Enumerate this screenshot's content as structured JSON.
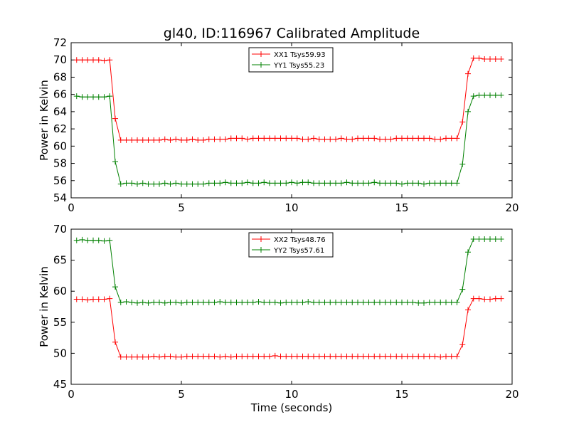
{
  "figure": {
    "title": "gl40, ID:116967 Calibrated Amplitude",
    "xlabel": "Time (seconds)"
  },
  "chart_data": [
    {
      "type": "line",
      "title": "gl40, ID:116967 Calibrated Amplitude",
      "xlabel": "",
      "ylabel": "Power in Kelvin",
      "xlim": [
        0,
        20
      ],
      "ylim": [
        54,
        72
      ],
      "xticks": [
        0,
        5,
        10,
        15,
        20
      ],
      "yticks": [
        54,
        56,
        58,
        60,
        62,
        64,
        66,
        68,
        70,
        72
      ],
      "grid": false,
      "legend": "top-center",
      "series": [
        {
          "name": "XX1 Tsys59.93",
          "color": "#ff0000",
          "x": [
            0.25,
            0.5,
            0.75,
            1.0,
            1.25,
            1.5,
            1.75,
            2.0,
            2.25,
            2.5,
            2.75,
            3.0,
            3.25,
            3.5,
            3.75,
            4.0,
            4.25,
            4.5,
            4.75,
            5.0,
            5.25,
            5.5,
            5.75,
            6.0,
            6.25,
            6.5,
            6.75,
            7.0,
            7.25,
            7.5,
            7.75,
            8.0,
            8.25,
            8.5,
            8.75,
            9.0,
            9.25,
            9.5,
            9.75,
            10.0,
            10.25,
            10.5,
            10.75,
            11.0,
            11.25,
            11.5,
            11.75,
            12.0,
            12.25,
            12.5,
            12.75,
            13.0,
            13.25,
            13.5,
            13.75,
            14.0,
            14.25,
            14.5,
            14.75,
            15.0,
            15.25,
            15.5,
            15.75,
            16.0,
            16.25,
            16.5,
            16.75,
            17.0,
            17.25,
            17.5,
            17.75,
            18.0,
            18.25,
            18.5,
            18.75,
            19.0,
            19.25,
            19.5
          ],
          "y": [
            70.0,
            70.0,
            70.0,
            70.0,
            70.0,
            69.9,
            70.0,
            63.2,
            60.7,
            60.7,
            60.7,
            60.7,
            60.7,
            60.7,
            60.7,
            60.7,
            60.8,
            60.7,
            60.8,
            60.7,
            60.7,
            60.8,
            60.7,
            60.7,
            60.8,
            60.8,
            60.8,
            60.8,
            60.9,
            60.9,
            60.9,
            60.8,
            60.9,
            60.9,
            60.9,
            60.9,
            60.9,
            60.9,
            60.9,
            60.9,
            60.9,
            60.8,
            60.8,
            60.9,
            60.8,
            60.8,
            60.8,
            60.8,
            60.9,
            60.8,
            60.8,
            60.9,
            60.9,
            60.9,
            60.9,
            60.8,
            60.8,
            60.8,
            60.9,
            60.9,
            60.9,
            60.9,
            60.9,
            60.9,
            60.9,
            60.8,
            60.8,
            60.9,
            60.9,
            60.9,
            62.8,
            68.4,
            70.2,
            70.2,
            70.1,
            70.1,
            70.1,
            70.1
          ]
        },
        {
          "name": "YY1 Tsys55.23",
          "color": "#008000",
          "x": [
            0.25,
            0.5,
            0.75,
            1.0,
            1.25,
            1.5,
            1.75,
            2.0,
            2.25,
            2.5,
            2.75,
            3.0,
            3.25,
            3.5,
            3.75,
            4.0,
            4.25,
            4.5,
            4.75,
            5.0,
            5.25,
            5.5,
            5.75,
            6.0,
            6.25,
            6.5,
            6.75,
            7.0,
            7.25,
            7.5,
            7.75,
            8.0,
            8.25,
            8.5,
            8.75,
            9.0,
            9.25,
            9.5,
            9.75,
            10.0,
            10.25,
            10.5,
            10.75,
            11.0,
            11.25,
            11.5,
            11.75,
            12.0,
            12.25,
            12.5,
            12.75,
            13.0,
            13.25,
            13.5,
            13.75,
            14.0,
            14.25,
            14.5,
            14.75,
            15.0,
            15.25,
            15.5,
            15.75,
            16.0,
            16.25,
            16.5,
            16.75,
            17.0,
            17.25,
            17.5,
            17.75,
            18.0,
            18.25,
            18.5,
            18.75,
            19.0,
            19.25,
            19.5
          ],
          "y": [
            65.8,
            65.7,
            65.7,
            65.7,
            65.7,
            65.7,
            65.8,
            58.2,
            55.6,
            55.7,
            55.7,
            55.6,
            55.7,
            55.6,
            55.6,
            55.6,
            55.7,
            55.6,
            55.7,
            55.6,
            55.6,
            55.6,
            55.6,
            55.6,
            55.7,
            55.7,
            55.7,
            55.8,
            55.7,
            55.7,
            55.7,
            55.8,
            55.7,
            55.7,
            55.8,
            55.7,
            55.7,
            55.7,
            55.7,
            55.8,
            55.7,
            55.8,
            55.8,
            55.7,
            55.7,
            55.7,
            55.7,
            55.7,
            55.7,
            55.8,
            55.7,
            55.7,
            55.7,
            55.7,
            55.8,
            55.7,
            55.7,
            55.7,
            55.7,
            55.6,
            55.7,
            55.7,
            55.7,
            55.6,
            55.7,
            55.7,
            55.7,
            55.7,
            55.7,
            55.7,
            57.9,
            64.0,
            65.8,
            65.9,
            65.9,
            65.9,
            65.9,
            65.9
          ]
        }
      ]
    },
    {
      "type": "line",
      "title": "",
      "xlabel": "Time (seconds)",
      "ylabel": "Power in Kelvin",
      "xlim": [
        0,
        20
      ],
      "ylim": [
        45,
        70
      ],
      "xticks": [
        0,
        5,
        10,
        15,
        20
      ],
      "yticks": [
        45,
        50,
        55,
        60,
        65,
        70
      ],
      "grid": false,
      "legend": "top-center",
      "series": [
        {
          "name": "XX2 Tsys48.76",
          "color": "#ff0000",
          "x": [
            0.25,
            0.5,
            0.75,
            1.0,
            1.25,
            1.5,
            1.75,
            2.0,
            2.25,
            2.5,
            2.75,
            3.0,
            3.25,
            3.5,
            3.75,
            4.0,
            4.25,
            4.5,
            4.75,
            5.0,
            5.25,
            5.5,
            5.75,
            6.0,
            6.25,
            6.5,
            6.75,
            7.0,
            7.25,
            7.5,
            7.75,
            8.0,
            8.25,
            8.5,
            8.75,
            9.0,
            9.25,
            9.5,
            9.75,
            10.0,
            10.25,
            10.5,
            10.75,
            11.0,
            11.25,
            11.5,
            11.75,
            12.0,
            12.25,
            12.5,
            12.75,
            13.0,
            13.25,
            13.5,
            13.75,
            14.0,
            14.25,
            14.5,
            14.75,
            15.0,
            15.25,
            15.5,
            15.75,
            16.0,
            16.25,
            16.5,
            16.75,
            17.0,
            17.25,
            17.5,
            17.75,
            18.0,
            18.25,
            18.5,
            18.75,
            19.0,
            19.25,
            19.5
          ],
          "y": [
            58.7,
            58.7,
            58.6,
            58.7,
            58.7,
            58.7,
            58.8,
            51.8,
            49.4,
            49.4,
            49.4,
            49.4,
            49.4,
            49.4,
            49.5,
            49.4,
            49.5,
            49.5,
            49.4,
            49.4,
            49.5,
            49.5,
            49.5,
            49.5,
            49.5,
            49.5,
            49.4,
            49.5,
            49.4,
            49.5,
            49.5,
            49.5,
            49.5,
            49.5,
            49.5,
            49.5,
            49.6,
            49.5,
            49.5,
            49.5,
            49.5,
            49.5,
            49.5,
            49.5,
            49.5,
            49.5,
            49.5,
            49.5,
            49.5,
            49.5,
            49.5,
            49.5,
            49.5,
            49.5,
            49.5,
            49.5,
            49.5,
            49.5,
            49.5,
            49.5,
            49.5,
            49.5,
            49.5,
            49.5,
            49.5,
            49.5,
            49.4,
            49.5,
            49.5,
            49.5,
            51.4,
            57.0,
            58.8,
            58.8,
            58.7,
            58.7,
            58.8,
            58.8
          ]
        },
        {
          "name": "YY2 Tsys57.61",
          "color": "#008000",
          "x": [
            0.25,
            0.5,
            0.75,
            1.0,
            1.25,
            1.5,
            1.75,
            2.0,
            2.25,
            2.5,
            2.75,
            3.0,
            3.25,
            3.5,
            3.75,
            4.0,
            4.25,
            4.5,
            4.75,
            5.0,
            5.25,
            5.5,
            5.75,
            6.0,
            6.25,
            6.5,
            6.75,
            7.0,
            7.25,
            7.5,
            7.75,
            8.0,
            8.25,
            8.5,
            8.75,
            9.0,
            9.25,
            9.5,
            9.75,
            10.0,
            10.25,
            10.5,
            10.75,
            11.0,
            11.25,
            11.5,
            11.75,
            12.0,
            12.25,
            12.5,
            12.75,
            13.0,
            13.25,
            13.5,
            13.75,
            14.0,
            14.25,
            14.5,
            14.75,
            15.0,
            15.25,
            15.5,
            15.75,
            16.0,
            16.25,
            16.5,
            16.75,
            17.0,
            17.25,
            17.5,
            17.75,
            18.0,
            18.25,
            18.5,
            18.75,
            19.0,
            19.25,
            19.5
          ],
          "y": [
            68.2,
            68.3,
            68.2,
            68.2,
            68.2,
            68.1,
            68.2,
            60.7,
            58.2,
            58.3,
            58.2,
            58.1,
            58.2,
            58.1,
            58.2,
            58.2,
            58.1,
            58.2,
            58.2,
            58.1,
            58.2,
            58.2,
            58.2,
            58.2,
            58.2,
            58.2,
            58.3,
            58.2,
            58.2,
            58.2,
            58.2,
            58.2,
            58.2,
            58.3,
            58.2,
            58.2,
            58.2,
            58.1,
            58.2,
            58.2,
            58.2,
            58.2,
            58.3,
            58.2,
            58.2,
            58.2,
            58.2,
            58.2,
            58.2,
            58.2,
            58.2,
            58.2,
            58.2,
            58.2,
            58.2,
            58.2,
            58.2,
            58.2,
            58.2,
            58.2,
            58.2,
            58.2,
            58.1,
            58.1,
            58.2,
            58.2,
            58.2,
            58.2,
            58.2,
            58.2,
            60.3,
            66.3,
            68.4,
            68.4,
            68.4,
            68.4,
            68.4,
            68.4
          ]
        }
      ]
    }
  ]
}
